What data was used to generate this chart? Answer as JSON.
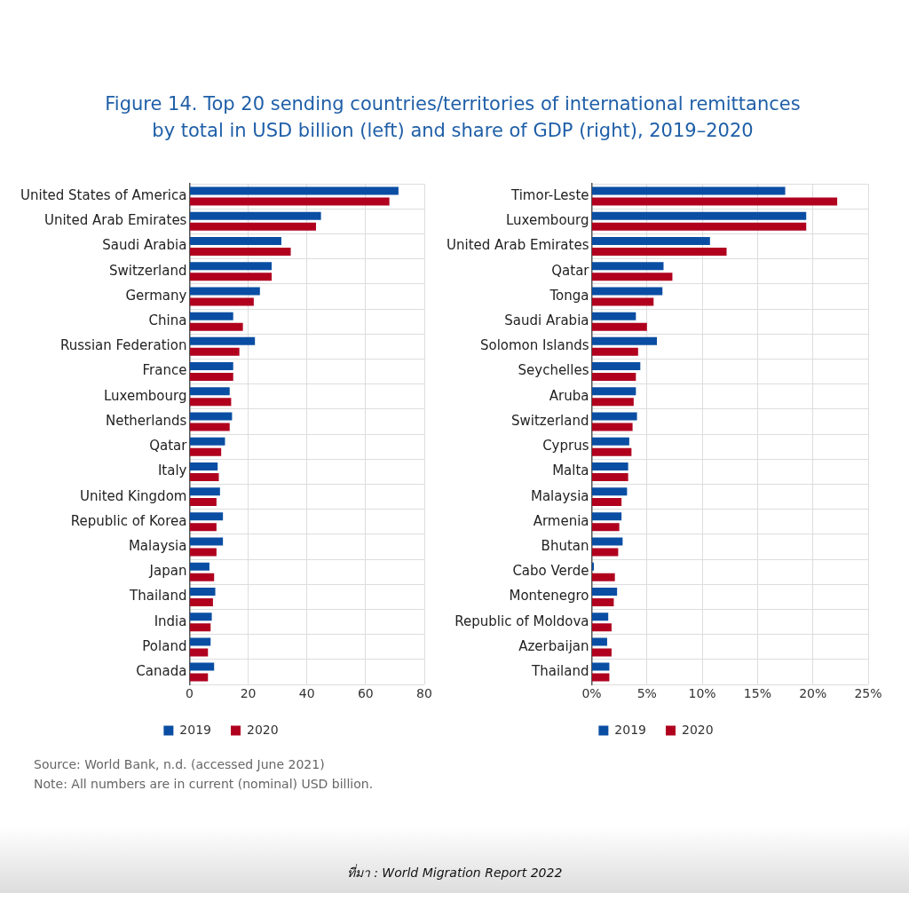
{
  "chart_data": [
    {
      "type": "bar",
      "orientation": "horizontal",
      "title": "Figure 14. Top 20 sending countries/territories of international remittances by total in USD billion (left) and share of GDP (right), 2019–2020",
      "categories": [
        "United States of America",
        "United Arab Emirates",
        "Saudi Arabia",
        "Switzerland",
        "Germany",
        "China",
        "Russian Federation",
        "France",
        "Luxembourg",
        "Netherlands",
        "Qatar",
        "Italy",
        "United Kingdom",
        "Republic of Korea",
        "Malaysia",
        "Japan",
        "Thailand",
        "India",
        "Poland",
        "Canada"
      ],
      "series": [
        {
          "name": "2019",
          "color": "#0a4ea3",
          "values": [
            71.2,
            44.8,
            31.3,
            28.0,
            24.0,
            14.9,
            22.3,
            14.9,
            13.7,
            14.5,
            12.1,
            9.6,
            10.4,
            11.4,
            11.4,
            6.8,
            8.8,
            7.6,
            7.2,
            8.4
          ]
        },
        {
          "name": "2020",
          "color": "#b0001e",
          "values": [
            68.1,
            43.1,
            34.5,
            28.0,
            21.9,
            18.2,
            17.0,
            14.9,
            14.2,
            13.7,
            10.8,
            10.0,
            9.2,
            9.2,
            9.2,
            8.4,
            8.0,
            7.2,
            6.3,
            6.3
          ]
        }
      ],
      "xlim": [
        0,
        80
      ],
      "xticks": [
        0,
        20,
        40,
        60,
        80
      ],
      "grid": true,
      "legend": "bottom",
      "annotations": [
        "Source: World Bank, n.d. (accessed June 2021)",
        "Note: All numbers are in current (nominal) USD billion."
      ]
    },
    {
      "type": "bar",
      "orientation": "horizontal",
      "categories": [
        "Timor-Leste",
        "Luxembourg",
        "United Arab Emirates",
        "Qatar",
        "Tonga",
        "Saudi Arabia",
        "Solomon Islands",
        "Seychelles",
        "Aruba",
        "Switzerland",
        "Cyprus",
        "Malta",
        "Malaysia",
        "Armenia",
        "Bhutan",
        "Cabo Verde",
        "Montenegro",
        "Republic of Moldova",
        "Azerbaijan",
        "Thailand"
      ],
      "series": [
        {
          "name": "2019",
          "color": "#0a4ea3",
          "values": [
            17.5,
            19.4,
            10.7,
            6.5,
            6.4,
            4.0,
            5.9,
            4.4,
            4.0,
            4.1,
            3.4,
            3.3,
            3.2,
            2.7,
            2.8,
            0.2,
            2.3,
            1.5,
            1.4,
            1.6
          ]
        },
        {
          "name": "2020",
          "color": "#b0001e",
          "values": [
            22.2,
            19.4,
            12.2,
            7.3,
            5.6,
            5.0,
            4.2,
            4.0,
            3.8,
            3.7,
            3.6,
            3.3,
            2.7,
            2.5,
            2.4,
            2.1,
            2.0,
            1.8,
            1.8,
            1.6
          ]
        }
      ],
      "xlim": [
        0,
        25
      ],
      "xticks": [
        {
          "value": 0,
          "label": "0%"
        },
        {
          "value": 5,
          "label": "5%"
        },
        {
          "value": 10,
          "label": "10%"
        },
        {
          "value": 15,
          "label": "15%"
        },
        {
          "value": 20,
          "label": "20%"
        },
        {
          "value": 25,
          "label": "25%"
        }
      ],
      "grid": true,
      "legend": "bottom",
      "annotations": [
        "ที่มา : World Migration Report 2022"
      ]
    }
  ]
}
